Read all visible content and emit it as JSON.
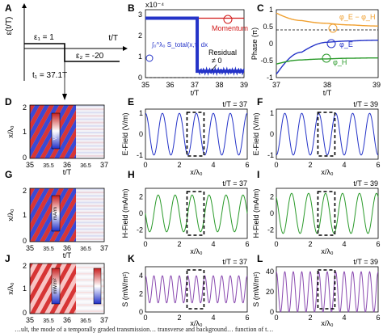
{
  "figure": {
    "panel_labels": [
      "A",
      "B",
      "C",
      "D",
      "E",
      "F",
      "G",
      "H",
      "I",
      "J",
      "K",
      "L"
    ],
    "caption": "…ult, the mode of a temporally graded transmission… transverse and background… function of t…"
  },
  "panel_a": {
    "ylabel": "ε(t/T)",
    "xlabel": "t/T",
    "eps1_label": "ε₁ = 1",
    "eps2_label": "ε₂ = -20",
    "t1_label": "t₁ = 37.1T"
  },
  "panel_b": {
    "scale_label": "x10⁻⁴",
    "momentum_label": "Momentum",
    "residual_label": "Residual",
    "residual_value": "≠ 0",
    "integral_label": "∫₀^λ₀ S_total(x,τ) dx",
    "xlabel": "t/T",
    "xticks": [
      "35",
      "36",
      "37",
      "38",
      "39"
    ],
    "yticks": [
      "0",
      "1",
      "2",
      "3"
    ],
    "colors": {
      "momentum": "#d11a1a",
      "integral": "#2433c8"
    }
  },
  "panel_c": {
    "ylabel": "Phase (π)",
    "xlabel": "t/T",
    "xticks": [
      "37",
      "38",
      "39"
    ],
    "yticks": [
      "-1",
      "-0.5",
      "0",
      "0.5",
      "1"
    ],
    "legend": {
      "diff": "φ_E − φ_H",
      "e": "φ_E",
      "h": "φ_H"
    },
    "colors": {
      "diff": "#f0a030",
      "e": "#2433c8",
      "h": "#2a9a2a"
    }
  },
  "panel_d": {
    "ylabel": "x/λ₀",
    "xlabel": "t/T",
    "xticks": [
      "35",
      "35.5",
      "36",
      "36.5",
      "37"
    ],
    "yticks": [
      "0",
      "1",
      "2"
    ],
    "cbar_label": "V/m"
  },
  "panel_g": {
    "ylabel": "x/λ₀",
    "xlabel": "t/T",
    "xticks": [
      "35",
      "35.5",
      "36",
      "36.5",
      "37"
    ],
    "yticks": [
      "0",
      "1",
      "2"
    ],
    "cbar_label": "mA/m"
  },
  "panel_j": {
    "ylabel": "x/λ₀",
    "xlabel": "t/T",
    "xticks": [
      "35",
      "35.5",
      "36",
      "36.5",
      "37"
    ],
    "yticks": [
      "0",
      "1",
      "2"
    ],
    "cbar_label": "mW/m²"
  },
  "panel_e": {
    "title": "t/T = 37",
    "ylabel": "E-Field (V/m)",
    "xlabel": "x/λ₀",
    "xticks": [
      "0",
      "2",
      "4",
      "6"
    ],
    "yticks": [
      "-1",
      "0",
      "1"
    ],
    "color": "#2433c8"
  },
  "panel_f": {
    "title": "t/T = 39",
    "ylabel": "E-Field (V/m)",
    "xlabel": "x/λ₀",
    "xticks": [
      "0",
      "2",
      "4",
      "6"
    ],
    "yticks": [
      "-1",
      "0",
      "1"
    ],
    "color": "#2433c8"
  },
  "panel_h": {
    "title": "t/T = 37",
    "ylabel": "H-Field (mA/m)",
    "xlabel": "x/λ₀",
    "xticks": [
      "0",
      "2",
      "4",
      "6"
    ],
    "yticks": [
      "-2",
      "0",
      "2"
    ],
    "color": "#2a9a2a"
  },
  "panel_i": {
    "title": "t/T = 39",
    "ylabel": "H-Field (mA/m)",
    "xlabel": "x/λ₀",
    "xticks": [
      "0",
      "2",
      "4",
      "6"
    ],
    "yticks": [
      "-2",
      "0",
      "2"
    ],
    "color": "#2a9a2a"
  },
  "panel_k": {
    "title": "t/T = 37",
    "ylabel": "S (mW/m²)",
    "xlabel": "x/λ₀",
    "xticks": [
      "0",
      "2",
      "4",
      "6"
    ],
    "yticks": [
      "0",
      "2",
      "4"
    ],
    "color": "#8a4ab0"
  },
  "panel_l": {
    "title": "t/T = 39",
    "ylabel": "S (mW/m²)",
    "xlabel": "x/λ₀",
    "xticks": [
      "0",
      "2",
      "4",
      "6"
    ],
    "yticks": [
      "0",
      "20",
      "40"
    ],
    "color": "#8a4ab0"
  },
  "chart_data": [
    {
      "panel": "B",
      "type": "line",
      "xlabel": "t/T",
      "ylabel": "",
      "xlim": [
        35,
        39
      ],
      "ylim": [
        0,
        3.2
      ],
      "series": [
        {
          "name": "Momentum",
          "x": [
            35,
            39
          ],
          "y": [
            2.8,
            2.8
          ]
        },
        {
          "name": "∫₀^λ₀ S_total(x,τ) dx",
          "x": [
            35,
            37.1,
            37.1,
            39
          ],
          "y": [
            2.8,
            2.8,
            0.3,
            0.3
          ]
        }
      ]
    },
    {
      "panel": "C",
      "type": "line",
      "xlabel": "t/T",
      "ylabel": "Phase (π)",
      "xlim": [
        37,
        39
      ],
      "ylim": [
        -1,
        1
      ],
      "series": [
        {
          "name": "φ_E − φ_H",
          "x": [
            37,
            37.5,
            38,
            38.5,
            39
          ],
          "y": [
            0.9,
            0.68,
            0.6,
            0.55,
            0.52
          ]
        },
        {
          "name": "φ_E",
          "x": [
            37,
            37.5,
            38,
            38.5,
            39
          ],
          "y": [
            -0.9,
            -0.25,
            0.04,
            0.08,
            0.1
          ]
        },
        {
          "name": "φ_H",
          "x": [
            37,
            37.5,
            38,
            38.5,
            39
          ],
          "y": [
            -0.6,
            -0.48,
            -0.45,
            -0.43,
            -0.42
          ]
        }
      ]
    },
    {
      "panel": "E",
      "type": "line",
      "xlabel": "x/λ₀",
      "ylabel": "E-Field (V/m)",
      "xlim": [
        0,
        6
      ],
      "ylim": [
        -1.2,
        1.2
      ],
      "amplitude": 1,
      "wavelength": 1,
      "phase": 0
    },
    {
      "panel": "F",
      "type": "line",
      "xlabel": "x/λ₀",
      "ylabel": "E-Field (V/m)",
      "xlim": [
        0,
        6
      ],
      "ylim": [
        -1.2,
        1.2
      ],
      "amplitude": 1,
      "wavelength": 1,
      "phase": 0.5
    },
    {
      "panel": "H",
      "type": "line",
      "xlabel": "x/λ₀",
      "ylabel": "H-Field (mA/m)",
      "xlim": [
        0,
        6
      ],
      "ylim": [
        -3,
        3
      ],
      "amplitude": 2.2,
      "wavelength": 1,
      "phase": 0.25
    },
    {
      "panel": "I",
      "type": "line",
      "xlabel": "x/λ₀",
      "ylabel": "H-Field (mA/m)",
      "xlim": [
        0,
        6
      ],
      "ylim": [
        -3,
        3
      ],
      "amplitude": 2.4,
      "wavelength": 1,
      "phase": 0.1
    },
    {
      "panel": "K",
      "type": "line",
      "xlabel": "x/λ₀",
      "ylabel": "S (mW/m²)",
      "xlim": [
        0,
        6
      ],
      "ylim": [
        0,
        5
      ],
      "offset": 2.5,
      "amplitude": 1.5,
      "wavelength": 0.5,
      "phase": 0
    },
    {
      "panel": "L",
      "type": "line",
      "xlabel": "x/λ₀",
      "ylabel": "S (mW/m²)",
      "xlim": [
        0,
        6
      ],
      "ylim": [
        0,
        45
      ],
      "offset": 20,
      "amplitude": 20,
      "wavelength": 0.5,
      "phase": 0
    }
  ]
}
